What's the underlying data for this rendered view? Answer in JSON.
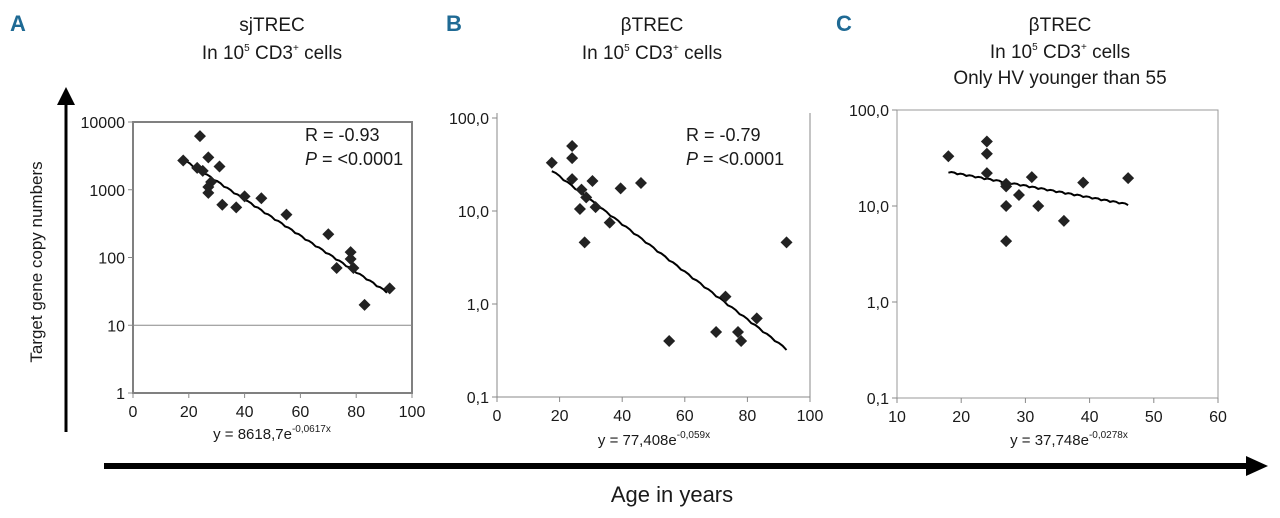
{
  "figure": {
    "shared_ylabel": "Target gene copy numbers",
    "shared_xlabel": "Age in years"
  },
  "chart_data": [
    {
      "type": "scatter",
      "panel": "A",
      "title_lines": [
        "sjTREC",
        "In 10^5 CD3+ cells"
      ],
      "title": {
        "line1": "sjTREC",
        "line2_pre": "In 10",
        "line2_sup": "5",
        "line2_mid": " CD3",
        "line2_sup2": "+",
        "line2_post": " cells"
      },
      "xlabel": "Age in years",
      "ylabel": "Target gene copy numbers",
      "yscale": "log",
      "xlim": [
        0,
        100
      ],
      "ylim": [
        1,
        10000
      ],
      "xticks": [
        "0",
        "20",
        "40",
        "60",
        "80",
        "100"
      ],
      "xtick_values": [
        0,
        20,
        40,
        60,
        80,
        100
      ],
      "yticks": [
        "1",
        "10",
        "100",
        "1000",
        "10000"
      ],
      "ytick_values": [
        1,
        10,
        100,
        1000,
        10000
      ],
      "gridlines_y": [
        10
      ],
      "stats": {
        "r": "R = -0.93",
        "p_label": "P",
        "p_value": " = <0.0001"
      },
      "equation": {
        "pre": "y = 8618,7e",
        "exp": "-0,0617x"
      },
      "trend": {
        "a": 8618.7,
        "b": -0.0617,
        "x_range": [
          18,
          91
        ]
      },
      "points": [
        {
          "x": 24,
          "y": 6200
        },
        {
          "x": 18,
          "y": 2700
        },
        {
          "x": 23,
          "y": 2100
        },
        {
          "x": 27,
          "y": 3000
        },
        {
          "x": 31,
          "y": 2200
        },
        {
          "x": 25,
          "y": 1900
        },
        {
          "x": 28,
          "y": 1300
        },
        {
          "x": 27,
          "y": 1100
        },
        {
          "x": 27,
          "y": 900
        },
        {
          "x": 32,
          "y": 600
        },
        {
          "x": 37,
          "y": 550
        },
        {
          "x": 40,
          "y": 800
        },
        {
          "x": 46,
          "y": 750
        },
        {
          "x": 55,
          "y": 430
        },
        {
          "x": 70,
          "y": 220
        },
        {
          "x": 78,
          "y": 120
        },
        {
          "x": 78,
          "y": 95
        },
        {
          "x": 73,
          "y": 70
        },
        {
          "x": 79,
          "y": 70
        },
        {
          "x": 92,
          "y": 35
        },
        {
          "x": 83,
          "y": 20
        }
      ]
    },
    {
      "type": "scatter",
      "panel": "B",
      "title": {
        "line1": "βTREC",
        "line2_pre": "In 10",
        "line2_sup": "5",
        "line2_mid": " CD3",
        "line2_sup2": "+",
        "line2_post": " cells"
      },
      "xlabel": "Age in years",
      "yscale": "log",
      "xlim": [
        0,
        100
      ],
      "ylim": [
        0.1,
        100
      ],
      "xticks": [
        "0",
        "20",
        "40",
        "60",
        "80",
        "100"
      ],
      "xtick_values": [
        0,
        20,
        40,
        60,
        80,
        100
      ],
      "yticks": [
        "0,1",
        "1,0",
        "10,0",
        "100,0"
      ],
      "ytick_values": [
        0.1,
        1,
        10,
        100
      ],
      "stats": {
        "r": "R = -0.79",
        "p_label": "P",
        "p_value": " = <0.0001"
      },
      "equation": {
        "pre": "y = 77,408e",
        "exp": "-0,059x"
      },
      "trend": {
        "a": 77.408,
        "b": -0.059,
        "x_range": [
          17.5,
          92.5
        ]
      },
      "points": [
        {
          "x": 17.5,
          "y": 33
        },
        {
          "x": 24,
          "y": 50
        },
        {
          "x": 24,
          "y": 37
        },
        {
          "x": 24,
          "y": 22
        },
        {
          "x": 27,
          "y": 17
        },
        {
          "x": 28.5,
          "y": 14
        },
        {
          "x": 30.5,
          "y": 21
        },
        {
          "x": 26.5,
          "y": 10.5
        },
        {
          "x": 31.5,
          "y": 11
        },
        {
          "x": 28,
          "y": 4.6
        },
        {
          "x": 36,
          "y": 7.5
        },
        {
          "x": 39.5,
          "y": 17.5
        },
        {
          "x": 46,
          "y": 20
        },
        {
          "x": 92.5,
          "y": 4.6
        },
        {
          "x": 55,
          "y": 0.4
        },
        {
          "x": 70,
          "y": 0.5
        },
        {
          "x": 77,
          "y": 0.5
        },
        {
          "x": 78,
          "y": 0.4
        },
        {
          "x": 83,
          "y": 0.7
        },
        {
          "x": 73,
          "y": 1.2
        }
      ]
    },
    {
      "type": "scatter",
      "panel": "C",
      "title": {
        "line1": "βTREC",
        "line2_pre": "In 10",
        "line2_sup": "5",
        "line2_mid": " CD3",
        "line2_sup2": "+",
        "line2_post": " cells",
        "line3": "Only HV younger than 55"
      },
      "xlabel": "Age in years",
      "yscale": "log",
      "xlim": [
        10,
        60
      ],
      "ylim": [
        0.1,
        100
      ],
      "xticks": [
        "10",
        "20",
        "30",
        "40",
        "50",
        "60"
      ],
      "xtick_values": [
        10,
        20,
        30,
        40,
        50,
        60
      ],
      "yticks": [
        "0,1",
        "1,0",
        "10,0",
        "100,0"
      ],
      "ytick_values": [
        0.1,
        1,
        10,
        100
      ],
      "equation": {
        "pre": "y = 37,748e",
        "exp": "-0,0278x"
      },
      "trend": {
        "a": 37.748,
        "b": -0.0278,
        "x_range": [
          18,
          46
        ]
      },
      "points": [
        {
          "x": 18,
          "y": 33
        },
        {
          "x": 24,
          "y": 47
        },
        {
          "x": 24,
          "y": 35
        },
        {
          "x": 24,
          "y": 22
        },
        {
          "x": 27,
          "y": 17
        },
        {
          "x": 27,
          "y": 16
        },
        {
          "x": 29,
          "y": 13
        },
        {
          "x": 31,
          "y": 20
        },
        {
          "x": 27,
          "y": 10
        },
        {
          "x": 32,
          "y": 10
        },
        {
          "x": 27,
          "y": 4.3
        },
        {
          "x": 36,
          "y": 7
        },
        {
          "x": 39,
          "y": 17.5
        },
        {
          "x": 46,
          "y": 19.5
        }
      ]
    }
  ]
}
